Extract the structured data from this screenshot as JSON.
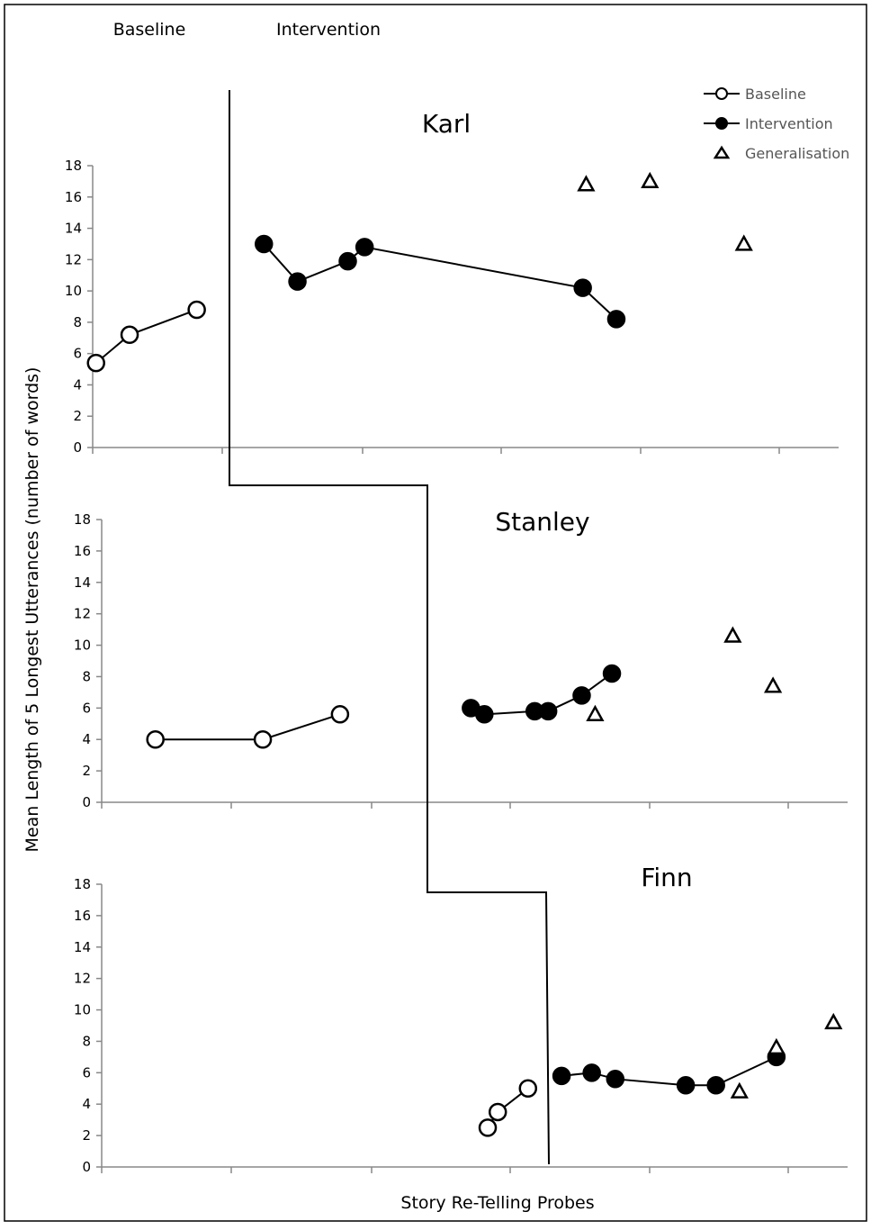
{
  "chart_data": {
    "type": "scatter",
    "phase_labels": [
      "Baseline",
      "Intervention"
    ],
    "xlabel": "Story Re-Telling Probes",
    "ylabel": "Mean Length of 5 Longest Utterances (number of words)",
    "ylim": [
      0,
      18
    ],
    "yticks": [
      0,
      2,
      4,
      6,
      8,
      10,
      12,
      14,
      16,
      18
    ],
    "legend": {
      "placement": "top-right",
      "entries": [
        {
          "label": "Baseline",
          "marker": "open-circle-line"
        },
        {
          "label": "Intervention",
          "marker": "filled-circle-line"
        },
        {
          "label": "Generalisation",
          "marker": "open-triangle"
        }
      ]
    },
    "panels": [
      {
        "title": "Karl",
        "series": [
          {
            "name": "Baseline",
            "points": [
              [
                1,
                5.4
              ],
              [
                2,
                7.2
              ],
              [
                4,
                8.8
              ]
            ]
          },
          {
            "name": "Intervention",
            "points": [
              [
                6,
                13.0
              ],
              [
                7,
                10.6
              ],
              [
                8.5,
                11.9
              ],
              [
                9,
                12.8
              ],
              [
                15.5,
                10.2
              ],
              [
                16.5,
                8.2
              ]
            ]
          },
          {
            "name": "Generalisation",
            "points": [
              [
                15.6,
                16.8
              ],
              [
                17.5,
                17.0
              ],
              [
                20.3,
                13.0
              ]
            ]
          }
        ]
      },
      {
        "title": "Stanley",
        "series": [
          {
            "name": "Baseline",
            "points": [
              [
                2.5,
                4.0
              ],
              [
                5.7,
                4.0
              ],
              [
                8,
                5.6
              ]
            ]
          },
          {
            "name": "Intervention",
            "points": [
              [
                11.9,
                6.0
              ],
              [
                12.3,
                5.6
              ],
              [
                13.8,
                5.8
              ],
              [
                14.2,
                5.8
              ],
              [
                15.2,
                6.8
              ],
              [
                16.1,
                8.2
              ]
            ]
          },
          {
            "name": "Generalisation",
            "points": [
              [
                15.6,
                5.6
              ],
              [
                19.7,
                10.6
              ],
              [
                20.9,
                7.4
              ]
            ]
          }
        ]
      },
      {
        "title": "Finn",
        "series": [
          {
            "name": "Baseline",
            "points": [
              [
                12.4,
                2.5
              ],
              [
                12.7,
                3.5
              ],
              [
                13.6,
                5.0
              ]
            ]
          },
          {
            "name": "Intervention",
            "points": [
              [
                14.6,
                5.8
              ],
              [
                15.5,
                6.0
              ],
              [
                16.2,
                5.6
              ],
              [
                18.3,
                5.2
              ],
              [
                19.2,
                5.2
              ],
              [
                21,
                7.0
              ]
            ]
          },
          {
            "name": "Generalisation",
            "points": [
              [
                19.9,
                4.8
              ],
              [
                21,
                7.6
              ],
              [
                22.7,
                9.2
              ]
            ]
          }
        ]
      }
    ]
  }
}
